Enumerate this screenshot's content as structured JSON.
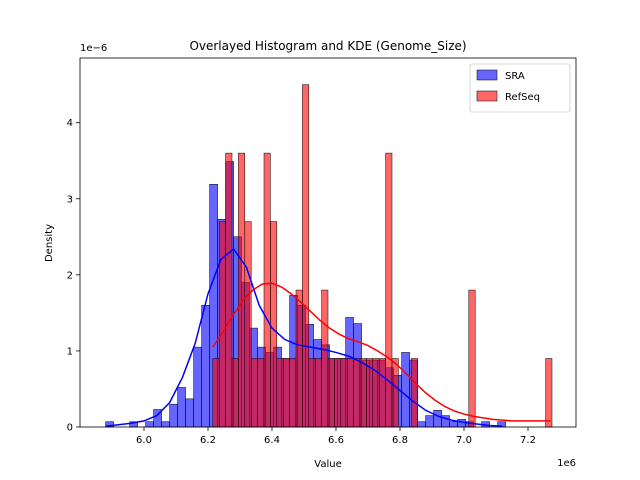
{
  "chart_data": {
    "type": "bar",
    "title": "Overlayed Histogram and KDE (Genome_Size)",
    "xlabel": "Value",
    "ylabel": "Density",
    "x_offset_label": "1e6",
    "y_offset_label": "1e−6",
    "xlim": [
      5.8,
      7.35
    ],
    "ylim": [
      0,
      4.85
    ],
    "xticks": [
      6.0,
      6.2,
      6.4,
      6.6,
      6.8,
      7.0,
      7.2
    ],
    "xtick_labels": [
      "6.0",
      "6.2",
      "6.4",
      "6.6",
      "6.8",
      "7.0",
      "7.2"
    ],
    "yticks": [
      0,
      1,
      2,
      3,
      4
    ],
    "ytick_labels": [
      "0",
      "1",
      "2",
      "3",
      "4"
    ],
    "x_units_note": "x in units of 1e6, density in units of 1e-6",
    "legend_position": "top-right",
    "series": [
      {
        "name": "SRA",
        "color": "#0000ff",
        "bin_edges": [
          5.88,
          5.905,
          5.93,
          5.955,
          5.98,
          6.005,
          6.03,
          6.055,
          6.08,
          6.105,
          6.13,
          6.155,
          6.18,
          6.205,
          6.23,
          6.255,
          6.28,
          6.305,
          6.33,
          6.355,
          6.38,
          6.405,
          6.43,
          6.455,
          6.48,
          6.505,
          6.53,
          6.555,
          6.58,
          6.605,
          6.63,
          6.655,
          6.68,
          6.705,
          6.73,
          6.755,
          6.78,
          6.805,
          6.83,
          6.855,
          6.88,
          6.905,
          6.93,
          6.955,
          6.98,
          7.005,
          7.03,
          7.055,
          7.08,
          7.105,
          7.13
        ],
        "values": [
          0.07,
          0.0,
          0.0,
          0.07,
          0.0,
          0.07,
          0.23,
          0.07,
          0.3,
          0.52,
          0.37,
          1.05,
          1.6,
          3.19,
          2.73,
          3.49,
          2.5,
          1.9,
          1.3,
          1.05,
          0.98,
          1.05,
          0.9,
          1.73,
          1.6,
          1.35,
          1.15,
          1.08,
          0.9,
          0.9,
          1.44,
          1.36,
          0.88,
          0.88,
          0.88,
          0.78,
          0.68,
          0.98,
          0.88,
          0.07,
          0.15,
          0.22,
          0.15,
          0.07,
          0.1,
          0.07,
          0.0,
          0.07,
          0.0,
          0.07
        ],
        "kde_x": [
          5.88,
          5.92,
          5.96,
          6.0,
          6.04,
          6.08,
          6.12,
          6.16,
          6.2,
          6.24,
          6.28,
          6.32,
          6.36,
          6.4,
          6.44,
          6.48,
          6.52,
          6.56,
          6.6,
          6.64,
          6.68,
          6.72,
          6.76,
          6.8,
          6.84,
          6.88,
          6.92,
          6.96,
          7.0,
          7.04,
          7.08,
          7.12
        ],
        "kde_y": [
          0.01,
          0.03,
          0.05,
          0.08,
          0.15,
          0.32,
          0.65,
          1.1,
          1.75,
          2.2,
          2.34,
          2.1,
          1.6,
          1.3,
          1.15,
          1.08,
          1.05,
          1.02,
          0.98,
          0.93,
          0.85,
          0.75,
          0.62,
          0.48,
          0.34,
          0.22,
          0.14,
          0.09,
          0.06,
          0.04,
          0.02,
          0.01
        ]
      },
      {
        "name": "RefSeq",
        "color": "#ff0000",
        "bin_edges": [
          6.215,
          6.235,
          6.255,
          6.275,
          6.295,
          6.315,
          6.335,
          6.355,
          6.375,
          6.395,
          6.415,
          6.435,
          6.455,
          6.475,
          6.495,
          6.515,
          6.535,
          6.555,
          6.575,
          6.595,
          6.615,
          6.635,
          6.655,
          6.675,
          6.695,
          6.715,
          6.735,
          6.755,
          6.775,
          6.795,
          6.815,
          6.835,
          6.855,
          6.875,
          6.895,
          6.915,
          6.935,
          6.955,
          6.975,
          6.995,
          7.015,
          7.035,
          7.055,
          7.075,
          7.095,
          7.115,
          7.135,
          7.155,
          7.175,
          7.195,
          7.215,
          7.235,
          7.255,
          7.275
        ],
        "values": [
          0.9,
          2.7,
          3.6,
          0.9,
          3.6,
          2.7,
          0.9,
          0.9,
          3.6,
          2.7,
          0.9,
          0.9,
          0.9,
          1.8,
          4.5,
          0.9,
          0.9,
          1.8,
          0.9,
          0.9,
          0.9,
          0.9,
          0.9,
          0.9,
          0.9,
          0.9,
          0.9,
          3.6,
          0.9,
          0.0,
          0.0,
          0.9,
          0.0,
          0.0,
          0.0,
          0.0,
          0.0,
          0.0,
          0.0,
          0.0,
          1.8,
          0.0,
          0.0,
          0.0,
          0.0,
          0.0,
          0.0,
          0.0,
          0.0,
          0.0,
          0.0,
          0.0,
          0.9
        ],
        "kde_x": [
          6.215,
          6.25,
          6.28,
          6.31,
          6.34,
          6.37,
          6.4,
          6.43,
          6.46,
          6.49,
          6.52,
          6.55,
          6.58,
          6.61,
          6.64,
          6.67,
          6.7,
          6.73,
          6.76,
          6.79,
          6.82,
          6.85,
          6.88,
          6.91,
          6.94,
          6.97,
          7.0,
          7.03,
          7.06,
          7.09,
          7.12,
          7.15,
          7.18,
          7.21,
          7.24,
          7.27
        ],
        "kde_y": [
          1.05,
          1.27,
          1.48,
          1.67,
          1.8,
          1.88,
          1.89,
          1.84,
          1.75,
          1.64,
          1.52,
          1.4,
          1.3,
          1.22,
          1.16,
          1.12,
          1.07,
          1.0,
          0.92,
          0.82,
          0.7,
          0.57,
          0.45,
          0.35,
          0.27,
          0.21,
          0.17,
          0.14,
          0.12,
          0.1,
          0.09,
          0.08,
          0.08,
          0.08,
          0.08,
          0.08
        ]
      }
    ]
  }
}
